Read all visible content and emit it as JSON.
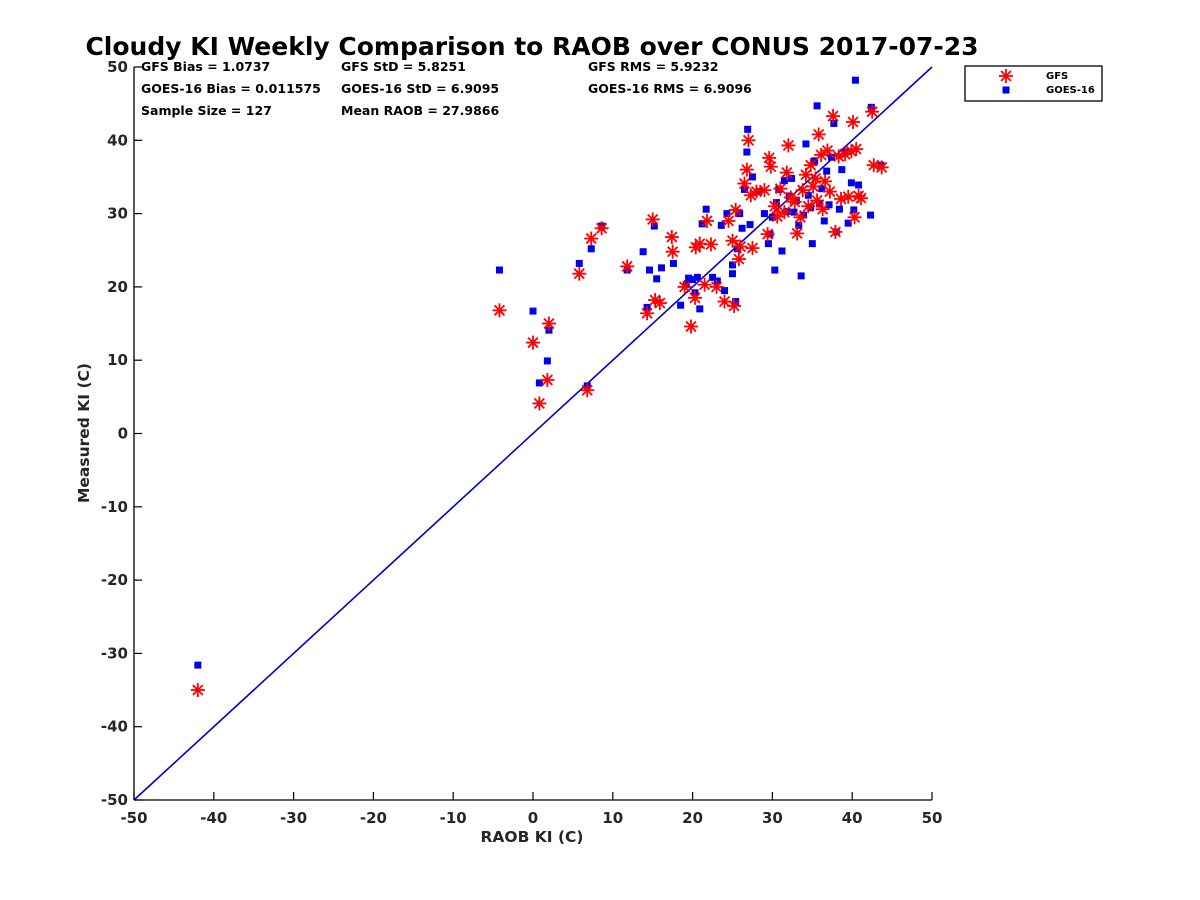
{
  "chart_data": {
    "type": "scatter",
    "title": "Cloudy KI Weekly Comparison to RAOB over CONUS 2017-07-23",
    "xlabel": "RAOB KI (C)",
    "ylabel": "Measured KI (C)",
    "xlim": [
      -50,
      50
    ],
    "ylim": [
      -50,
      50
    ],
    "x_ticks": [
      "-50",
      "-40",
      "-30",
      "-20",
      "-10",
      "0",
      "10",
      "20",
      "30",
      "40",
      "50"
    ],
    "y_ticks": [
      "50",
      "40",
      "30",
      "20",
      "10",
      "0",
      "-10",
      "-20",
      "-30",
      "-40",
      "-50"
    ],
    "grid": false,
    "legend_position": "top-right",
    "reference_line": {
      "from": [
        -50,
        -50
      ],
      "to": [
        50,
        50
      ],
      "color": "#0000cc"
    },
    "stats": {
      "gfs_bias": "GFS Bias = 1.0737",
      "goes_bias": "GOES-16 Bias = 0.011575",
      "sample_size": "Sample Size = 127",
      "gfs_std": "GFS StD = 5.8251",
      "goes_std": "GOES-16 StD = 6.9095",
      "mean_raob": "Mean RAOB = 27.9866",
      "gfs_rms": "GFS RMS = 5.9232",
      "goes_rms": "GOES-16 RMS = 6.9096"
    },
    "series": [
      {
        "name": "GFS",
        "marker": "asterisk",
        "color": "#ff0000",
        "points": [
          [
            -42,
            -35
          ],
          [
            -4.2,
            16.8
          ],
          [
            0,
            12.4
          ],
          [
            0.8,
            4.1
          ],
          [
            1.8,
            7.3
          ],
          [
            2,
            15
          ],
          [
            5.8,
            21.8
          ],
          [
            6.8,
            5.9
          ],
          [
            7.3,
            26.6
          ],
          [
            8.6,
            28
          ],
          [
            11.8,
            22.8
          ],
          [
            14.3,
            16.4
          ],
          [
            15,
            29.2
          ],
          [
            15.3,
            18.2
          ],
          [
            15.9,
            17.8
          ],
          [
            17.4,
            26.8
          ],
          [
            17.5,
            24.8
          ],
          [
            19,
            20
          ],
          [
            19.8,
            14.6
          ],
          [
            20.3,
            18.5
          ],
          [
            20.4,
            25.4
          ],
          [
            20.9,
            25.9
          ],
          [
            21.5,
            20.3
          ],
          [
            21.8,
            29
          ],
          [
            22.3,
            25.8
          ],
          [
            23,
            20
          ],
          [
            24,
            18
          ],
          [
            24.5,
            29
          ],
          [
            25,
            26.3
          ],
          [
            25.2,
            17.4
          ],
          [
            25.4,
            30.5
          ],
          [
            25.8,
            23.8
          ],
          [
            26,
            25.5
          ],
          [
            26.5,
            34.1
          ],
          [
            26.8,
            36
          ],
          [
            27,
            40
          ],
          [
            27.3,
            32.5
          ],
          [
            27.5,
            25.3
          ],
          [
            28,
            33
          ],
          [
            29,
            33.2
          ],
          [
            29.4,
            27.2
          ],
          [
            29.6,
            37.6
          ],
          [
            29.8,
            36.4
          ],
          [
            30.3,
            31
          ],
          [
            30.6,
            29.6
          ],
          [
            31,
            33.4
          ],
          [
            31.5,
            30.2
          ],
          [
            31.8,
            35.6
          ],
          [
            32,
            39.3
          ],
          [
            32.3,
            32.2
          ],
          [
            32.8,
            31.6
          ],
          [
            33.1,
            27.3
          ],
          [
            33.5,
            29.5
          ],
          [
            33.8,
            33.2
          ],
          [
            34.2,
            35.3
          ],
          [
            34.5,
            31
          ],
          [
            34.8,
            36.6
          ],
          [
            35.1,
            33.7
          ],
          [
            35.4,
            34.8
          ],
          [
            35.6,
            31.8
          ],
          [
            35.8,
            40.8
          ],
          [
            36.1,
            38
          ],
          [
            36.3,
            30.6
          ],
          [
            36.6,
            34.4
          ],
          [
            36.9,
            38.6
          ],
          [
            37.2,
            33
          ],
          [
            37.6,
            43.3
          ],
          [
            37.9,
            27.5
          ],
          [
            38.3,
            37.8
          ],
          [
            38.6,
            32
          ],
          [
            39.1,
            38.1
          ],
          [
            39.5,
            32.3
          ],
          [
            39.9,
            38.5
          ],
          [
            40.1,
            42.5
          ],
          [
            40.3,
            29.5
          ],
          [
            40.5,
            38.8
          ],
          [
            40.8,
            32.4
          ],
          [
            41.1,
            32.1
          ],
          [
            42.5,
            43.9
          ],
          [
            42.7,
            36.6
          ],
          [
            43.7,
            36.3
          ]
        ]
      },
      {
        "name": "GOES-16",
        "marker": "square",
        "color": "#0000ee",
        "points": [
          [
            -42,
            -31.6
          ],
          [
            -4.2,
            22.3
          ],
          [
            0,
            16.7
          ],
          [
            0.8,
            6.9
          ],
          [
            1.8,
            9.9
          ],
          [
            2,
            14.1
          ],
          [
            5.8,
            23.2
          ],
          [
            6.8,
            6.5
          ],
          [
            7.3,
            25.2
          ],
          [
            8.6,
            28.3
          ],
          [
            11.8,
            22.3
          ],
          [
            13.8,
            24.8
          ],
          [
            14.3,
            17.2
          ],
          [
            14.6,
            22.3
          ],
          [
            15.2,
            28.3
          ],
          [
            15.5,
            21.1
          ],
          [
            16.1,
            22.6
          ],
          [
            17.6,
            23.2
          ],
          [
            18.5,
            17.5
          ],
          [
            19.2,
            20.3
          ],
          [
            19.5,
            21.2
          ],
          [
            20,
            21
          ],
          [
            20.3,
            19.2
          ],
          [
            20.6,
            21.3
          ],
          [
            20.9,
            17
          ],
          [
            21.2,
            28.6
          ],
          [
            21.7,
            30.6
          ],
          [
            22.5,
            21.3
          ],
          [
            23.1,
            20.8
          ],
          [
            23.6,
            28.4
          ],
          [
            24,
            19.5
          ],
          [
            24.3,
            30
          ],
          [
            25,
            21.8
          ],
          [
            25,
            23
          ],
          [
            25.4,
            18
          ],
          [
            25.6,
            25.2
          ],
          [
            25.9,
            30
          ],
          [
            26.2,
            28
          ],
          [
            26.5,
            33.3
          ],
          [
            26.8,
            38.4
          ],
          [
            26.9,
            41.5
          ],
          [
            27.2,
            28.5
          ],
          [
            27.5,
            35
          ],
          [
            28.3,
            33
          ],
          [
            29,
            30
          ],
          [
            29.5,
            25.9
          ],
          [
            29.7,
            27.2
          ],
          [
            30,
            29.5
          ],
          [
            30.3,
            22.3
          ],
          [
            30.5,
            31.5
          ],
          [
            30.8,
            33.3
          ],
          [
            31.2,
            24.9
          ],
          [
            31.5,
            34.5
          ],
          [
            31.8,
            30.3
          ],
          [
            32.1,
            32.4
          ],
          [
            32.4,
            34.8
          ],
          [
            32.7,
            30.2
          ],
          [
            33,
            31.8
          ],
          [
            33.3,
            28.4
          ],
          [
            33.6,
            21.5
          ],
          [
            33.9,
            29.8
          ],
          [
            34.2,
            39.5
          ],
          [
            34.5,
            32.5
          ],
          [
            34.8,
            30.8
          ],
          [
            35,
            25.9
          ],
          [
            35.3,
            37.2
          ],
          [
            35.6,
            44.7
          ],
          [
            35.9,
            31.3
          ],
          [
            36.2,
            33.4
          ],
          [
            36.5,
            29
          ],
          [
            36.8,
            35.8
          ],
          [
            37.1,
            31.2
          ],
          [
            37.4,
            37.7
          ],
          [
            37.7,
            42.3
          ],
          [
            38,
            27.5
          ],
          [
            38.4,
            30.6
          ],
          [
            38.7,
            36
          ],
          [
            39.1,
            38.4
          ],
          [
            39.5,
            28.7
          ],
          [
            39.9,
            34.2
          ],
          [
            40.2,
            30.5
          ],
          [
            40.4,
            48.2
          ],
          [
            40.8,
            33.9
          ],
          [
            42.3,
            29.8
          ],
          [
            42.4,
            44.5
          ],
          [
            43.6,
            36.6
          ]
        ]
      }
    ]
  }
}
